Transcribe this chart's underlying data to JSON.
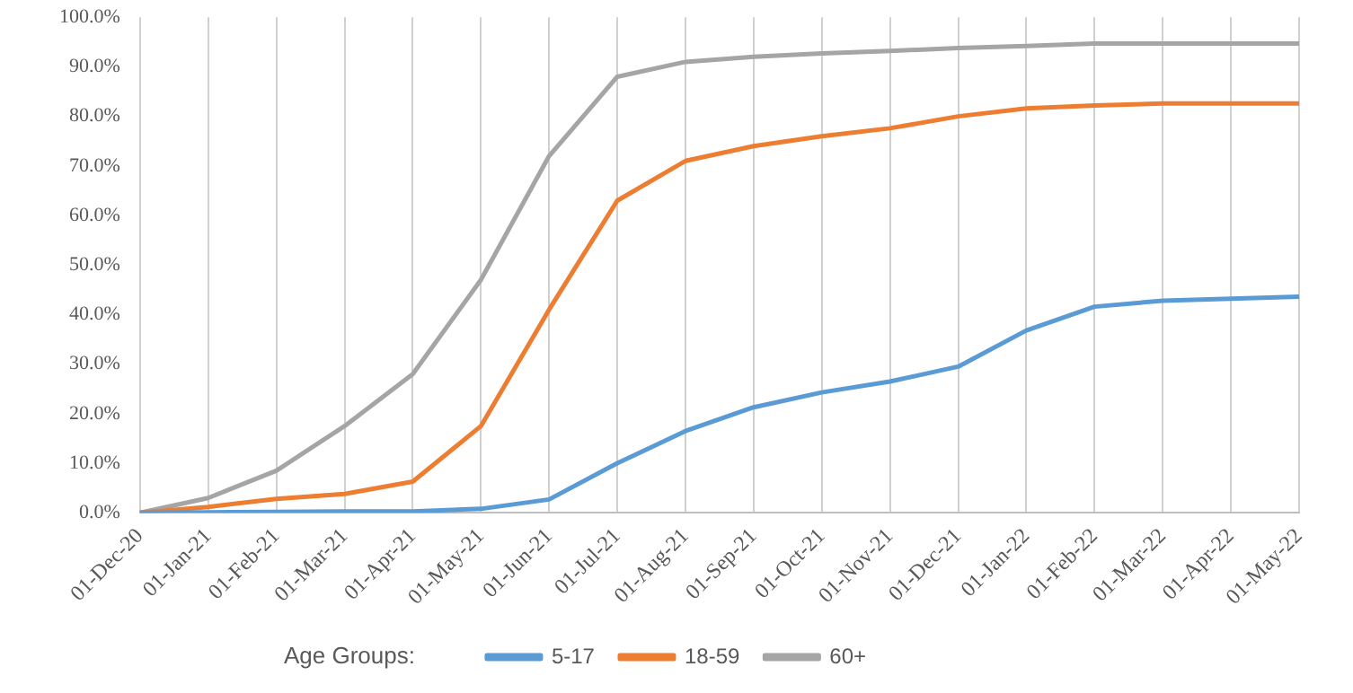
{
  "chart_data": {
    "type": "line",
    "categories": [
      "01-Dec-20",
      "01-Jan-21",
      "01-Feb-21",
      "01-Mar-21",
      "01-Apr-21",
      "01-May-21",
      "01-Jun-21",
      "01-Jul-21",
      "01-Aug-21",
      "01-Sep-21",
      "01-Oct-21",
      "01-Nov-21",
      "01-Dec-21",
      "01-Jan-22",
      "01-Feb-22",
      "01-Mar-22",
      "01-Apr-22",
      "01-May-22"
    ],
    "series": [
      {
        "name": "5-17",
        "color": "#5b9bd5",
        "values": [
          0,
          0.1,
          0.2,
          0.3,
          0.3,
          0.8,
          2.7,
          10,
          16.5,
          21.3,
          24.3,
          26.5,
          29.5,
          36.8,
          41.6,
          42.8,
          43.2,
          43.6
        ]
      },
      {
        "name": "18-59",
        "color": "#ed7d31",
        "values": [
          0,
          1.2,
          2.8,
          3.8,
          6.3,
          17.5,
          41,
          63,
          71,
          74,
          76,
          77.6,
          80,
          81.6,
          82.2,
          82.6,
          82.6,
          82.6
        ]
      },
      {
        "name": "60+",
        "color": "#a5a5a5",
        "values": [
          0,
          3,
          8.5,
          17.5,
          28,
          47,
          72,
          88,
          91,
          92,
          92.7,
          93.2,
          93.8,
          94.2,
          94.7,
          94.7,
          94.7,
          94.7
        ]
      }
    ],
    "legend_title": "Age Groups:",
    "ylim": [
      0,
      100
    ],
    "yticks": [
      {
        "value": 0,
        "label": "0.0%"
      },
      {
        "value": 10,
        "label": "10.0%"
      },
      {
        "value": 20,
        "label": "20.0%"
      },
      {
        "value": 30,
        "label": "30.0%"
      },
      {
        "value": 40,
        "label": "40.0%"
      },
      {
        "value": 50,
        "label": "50.0%"
      },
      {
        "value": 60,
        "label": "60.0%"
      },
      {
        "value": 70,
        "label": "70.0%"
      },
      {
        "value": 80,
        "label": "80.0%"
      },
      {
        "value": 90,
        "label": "90.0%"
      },
      {
        "value": 100,
        "label": "100.0%"
      }
    ],
    "grid": "x",
    "legend": "bottom",
    "marker": "none",
    "line_style": "solid"
  }
}
